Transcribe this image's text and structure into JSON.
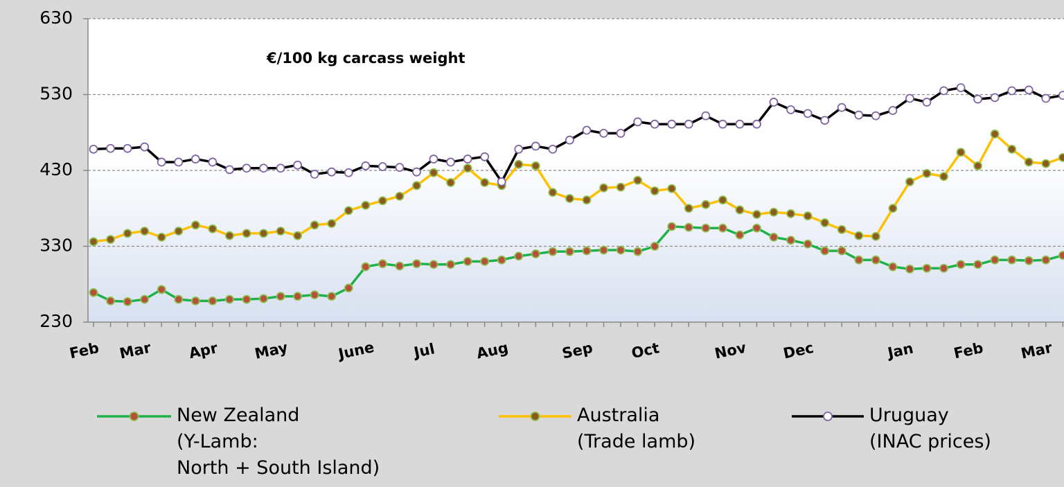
{
  "chart_data": {
    "type": "line",
    "annotation": "€/100 kg carcass weight",
    "categories": [
      "Feb",
      null,
      null,
      "Mar",
      null,
      null,
      null,
      "Apr",
      null,
      null,
      null,
      "May",
      null,
      null,
      null,
      null,
      "June",
      null,
      null,
      null,
      "Jul",
      null,
      null,
      null,
      "Aug",
      null,
      null,
      null,
      null,
      "Sep",
      null,
      null,
      null,
      "Oct",
      null,
      null,
      null,
      null,
      "Nov",
      null,
      null,
      null,
      "Dec",
      null,
      null,
      null,
      null,
      null,
      "Jan",
      null,
      null,
      null,
      "Feb",
      null,
      null,
      null,
      "Mar",
      null
    ],
    "series": [
      {
        "name": "New Zealand\n(Y-Lamb:\nNorth + South Island)",
        "color": "#1fb24a",
        "marker_color": "#b4513a",
        "values": [
          269,
          258,
          257,
          260,
          273,
          260,
          258,
          258,
          260,
          260,
          261,
          264,
          264,
          266,
          264,
          275,
          303,
          307,
          304,
          307,
          306,
          306,
          310,
          310,
          312,
          317,
          320,
          323,
          323,
          324,
          325,
          325,
          323,
          330,
          356,
          355,
          354,
          354,
          345,
          354,
          342,
          338,
          333,
          324,
          324,
          312,
          312,
          303,
          300,
          301,
          301,
          306,
          306,
          312,
          312,
          311,
          312,
          318
        ]
      },
      {
        "name": "Australia\n(Trade lamb)",
        "color": "#ffc000",
        "marker_color": "#8c5a1e",
        "values": [
          336,
          339,
          347,
          350,
          342,
          350,
          358,
          353,
          344,
          347,
          347,
          350,
          344,
          358,
          360,
          377,
          384,
          390,
          396,
          410,
          427,
          414,
          433,
          414,
          410,
          438,
          436,
          401,
          393,
          391,
          407,
          408,
          417,
          403,
          406,
          380,
          385,
          391,
          378,
          372,
          375,
          373,
          370,
          361,
          352,
          344,
          343,
          380,
          415,
          426,
          422,
          454,
          436,
          478,
          458,
          441,
          439,
          447
        ]
      },
      {
        "name": "Uruguay\n(INAC prices)",
        "color": "#000000",
        "marker_color": "#ffffff",
        "values": [
          458,
          459,
          459,
          461,
          441,
          441,
          445,
          441,
          431,
          433,
          433,
          433,
          437,
          425,
          428,
          427,
          436,
          435,
          434,
          428,
          445,
          441,
          445,
          448,
          415,
          458,
          462,
          458,
          470,
          483,
          479,
          479,
          494,
          491,
          491,
          491,
          502,
          491,
          491,
          491,
          520,
          510,
          505,
          496,
          513,
          503,
          502,
          509,
          525,
          520,
          535,
          539,
          524,
          526,
          535,
          536,
          525,
          529
        ]
      }
    ],
    "ylim": [
      230,
      630
    ],
    "yticks": [
      230,
      330,
      430,
      530,
      630
    ],
    "grid": true
  }
}
